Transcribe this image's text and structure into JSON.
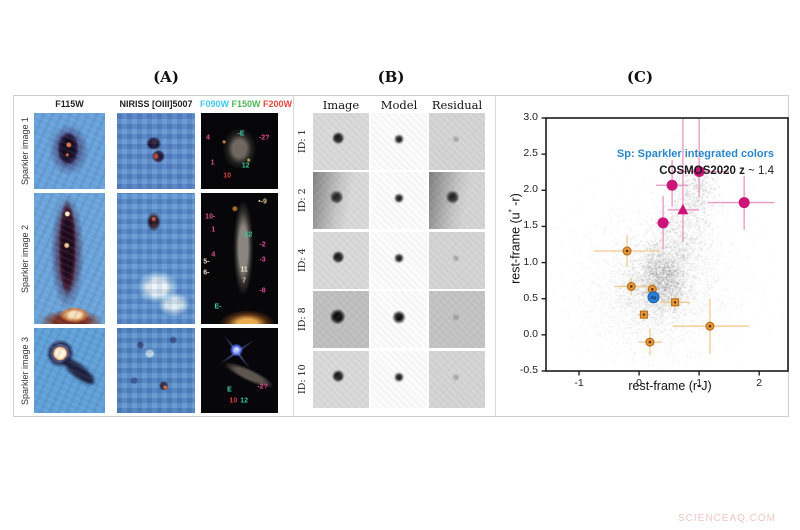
{
  "watermark": "SCIENCEAQ.COM",
  "panel_titles": {
    "a": "(A)",
    "b": "(B)",
    "c": "(C)"
  },
  "panel_a": {
    "col_headers": [
      "F115W",
      "NIRISS [OIII]5007"
    ],
    "filter_headers": [
      {
        "label": "F090W",
        "color": "#3fc8f0"
      },
      {
        "label": "F150W",
        "color": "#4fb654"
      },
      {
        "label": "F200W",
        "color": "#e8473f"
      }
    ],
    "rows": [
      {
        "label": "Sparkler image 1",
        "annotations": [
          {
            "t": "4",
            "c": "#e0509a",
            "x": 9,
            "y": 33
          },
          {
            "t": "-E",
            "c": "#45d0a5",
            "x": 52,
            "y": 27
          },
          {
            "t": "-2?",
            "c": "#e0509a",
            "x": 82,
            "y": 33
          },
          {
            "t": "1",
            "c": "#e0509a",
            "x": 15,
            "y": 66
          },
          {
            "t": "12",
            "c": "#39c98e",
            "x": 58,
            "y": 70
          },
          {
            "t": "10",
            "c": "#e04040",
            "x": 34,
            "y": 83
          }
        ]
      },
      {
        "label": "Sparkler image 2",
        "annotations": [
          {
            "t": "•-9",
            "c": "#d8c890",
            "x": 80,
            "y": 7
          },
          {
            "t": "10-",
            "c": "#e0509a",
            "x": 12,
            "y": 18
          },
          {
            "t": "1",
            "c": "#e0509a",
            "x": 16,
            "y": 28
          },
          {
            "t": "-12",
            "c": "#39c98e",
            "x": 60,
            "y": 32
          },
          {
            "t": "-2",
            "c": "#e0509a",
            "x": 80,
            "y": 40
          },
          {
            "t": "4",
            "c": "#e0509a",
            "x": 16,
            "y": 47
          },
          {
            "t": "5-",
            "c": "#e8e0c8",
            "x": 7,
            "y": 53
          },
          {
            "t": "-3",
            "c": "#e0509a",
            "x": 80,
            "y": 51
          },
          {
            "t": "6-",
            "c": "#e8e0c8",
            "x": 7,
            "y": 61
          },
          {
            "t": "11",
            "c": "#e8e0c8",
            "x": 56,
            "y": 59
          },
          {
            "t": "7",
            "c": "#d8c890",
            "x": 56,
            "y": 67
          },
          {
            "t": "-8",
            "c": "#e0509a",
            "x": 80,
            "y": 75
          },
          {
            "t": "E-",
            "c": "#45d0a5",
            "x": 22,
            "y": 87
          }
        ]
      },
      {
        "label": "Sparkler image 3",
        "annotations": [
          {
            "t": "E",
            "c": "#45d0a5",
            "x": 37,
            "y": 73
          },
          {
            "t": "-2?",
            "c": "#e0509a",
            "x": 80,
            "y": 69
          },
          {
            "t": "10",
            "c": "#e04040",
            "x": 42,
            "y": 86
          },
          {
            "t": "12",
            "c": "#39c98e",
            "x": 56,
            "y": 86
          }
        ]
      }
    ]
  },
  "panel_b": {
    "col_headers": [
      "Image",
      "Model",
      "Residual"
    ],
    "rows": [
      {
        "label": "ID: 1",
        "tone": "light"
      },
      {
        "label": "ID: 2",
        "tone": "darkleft"
      },
      {
        "label": "ID: 4",
        "tone": "light"
      },
      {
        "label": "ID: 8",
        "tone": "dark"
      },
      {
        "label": "ID: 10",
        "tone": "light"
      }
    ]
  },
  "chart_data": {
    "type": "scatter",
    "xlabel": "rest-frame (r-J)",
    "ylabel_parts": {
      "prefix": "rest-frame (u",
      "sup": "*",
      "suffix": " -r)"
    },
    "xlim": [
      -1.55,
      2.48
    ],
    "ylim": [
      -0.5,
      3.0
    ],
    "xticks": [
      -1,
      0,
      1,
      2
    ],
    "yticks": [
      -0.5,
      0.0,
      0.5,
      1.0,
      1.5,
      2.0,
      2.5,
      3.0
    ],
    "grid": false,
    "legend_line1": {
      "text": "Sp: Sparkler integrated colors",
      "color": "#2a86ca"
    },
    "legend_line2": {
      "bold": "COSMOS2020 z",
      "rest": " ~ 1.4",
      "color": "#1a1a1a"
    },
    "colors": {
      "magenta": "#cc1579",
      "magenta_err": "#e897c0",
      "orange": "#e5973a",
      "orange_edge": "#b06818",
      "orange_err": "#f2cb8e",
      "blue": "#2b7fd4",
      "blue_edge": "#1b5fa8",
      "cloud": "#3c3c3c"
    },
    "series": [
      {
        "name": "cosmos2020-quiescent-circles",
        "marker": "circle",
        "color_key": "magenta",
        "size": 5,
        "points": [
          {
            "x": 0.55,
            "y": 2.07,
            "xerr_lo": 0.27,
            "xerr_hi": 0.27,
            "yerr_lo": 0.3,
            "yerr_hi": 0.35
          },
          {
            "x": 1.0,
            "y": 2.26,
            "xerr_lo": 0.45,
            "xerr_hi": 0.5,
            "yerr_lo": 0.36,
            "yerr_hi": 0.8
          },
          {
            "x": 1.75,
            "y": 1.83,
            "xerr_lo": 0.6,
            "xerr_hi": 0.5,
            "yerr_lo": 0.38,
            "yerr_hi": 0.37
          },
          {
            "x": 0.4,
            "y": 1.55,
            "xerr_lo": 0.12,
            "xerr_hi": 0.12,
            "yerr_lo": 0.37,
            "yerr_hi": 0.37
          }
        ]
      },
      {
        "name": "cosmos2020-quiescent-triangle",
        "marker": "triangle",
        "color_key": "magenta",
        "size": 6,
        "points": [
          {
            "x": 0.73,
            "y": 1.73,
            "xerr_lo": 0.25,
            "xerr_hi": 0.27,
            "yerr_lo": 0.45,
            "yerr_hi": 1.3
          }
        ]
      },
      {
        "name": "sparkler-cluster-circles",
        "marker": "circle",
        "color_key": "orange",
        "size": 4,
        "points": [
          {
            "x": -0.2,
            "y": 1.16,
            "xerr_lo": 0.55,
            "xerr_hi": 0.55,
            "yerr_lo": 0.22,
            "yerr_hi": 0.22
          },
          {
            "x": -0.13,
            "y": 0.67,
            "xerr_lo": 0.28,
            "xerr_hi": 0.3,
            "yerr_lo": 0.12,
            "yerr_hi": 0.12
          },
          {
            "x": 0.22,
            "y": 0.63,
            "xerr_lo": 0.1,
            "xerr_hi": 0.1,
            "yerr_lo": 0.1,
            "yerr_hi": 0.1
          },
          {
            "x": 1.18,
            "y": 0.12,
            "xerr_lo": 0.62,
            "xerr_hi": 0.65,
            "yerr_lo": 0.38,
            "yerr_hi": 0.38
          },
          {
            "x": 0.18,
            "y": -0.1,
            "xerr_lo": 0.18,
            "xerr_hi": 0.2,
            "yerr_lo": 0.18,
            "yerr_hi": 0.18
          }
        ]
      },
      {
        "name": "sparkler-cluster-squares",
        "marker": "square",
        "color_key": "orange",
        "size": 7,
        "points": [
          {
            "x": 0.6,
            "y": 0.45,
            "xerr_lo": 0.25,
            "xerr_hi": 0.25,
            "yerr_lo": 0.1,
            "yerr_hi": 0.1
          },
          {
            "x": 0.08,
            "y": 0.28,
            "xerr_lo": 0.1,
            "xerr_hi": 0.1,
            "yerr_lo": 0.08,
            "yerr_hi": 0.08
          }
        ]
      },
      {
        "name": "sparkler-integrated-color",
        "marker": "circle",
        "color_key": "blue",
        "size": 5.5,
        "label": "Sp",
        "points": [
          {
            "x": 0.24,
            "y": 0.52,
            "xerr_lo": 0,
            "xerr_hi": 0,
            "yerr_lo": 0,
            "yerr_hi": 0
          }
        ]
      }
    ],
    "cloud": {
      "seed": 7,
      "clusters": [
        {
          "cx": 0.3,
          "cy": 0.72,
          "sx": 0.62,
          "sy": 0.5,
          "n": 2600,
          "alpha": 0.1
        },
        {
          "cx": 0.38,
          "cy": 0.78,
          "sx": 0.22,
          "sy": 0.22,
          "n": 1500,
          "alpha": 0.22
        },
        {
          "cx": 0.62,
          "cy": 1.2,
          "sx": 0.28,
          "sy": 0.28,
          "n": 650,
          "alpha": 0.16
        },
        {
          "cx": 0.85,
          "cy": 1.75,
          "sx": 0.2,
          "sy": 0.32,
          "n": 520,
          "alpha": 0.18
        },
        {
          "cx": 1.0,
          "cy": 2.05,
          "sx": 0.16,
          "sy": 0.18,
          "n": 260,
          "alpha": 0.2
        },
        {
          "cx": 0.1,
          "cy": 0.4,
          "sx": 0.45,
          "sy": 0.32,
          "n": 900,
          "alpha": 0.09
        },
        {
          "cx": 0.45,
          "cy": 0.9,
          "sx": 1.05,
          "sy": 0.85,
          "n": 900,
          "alpha": 0.06
        }
      ]
    }
  }
}
